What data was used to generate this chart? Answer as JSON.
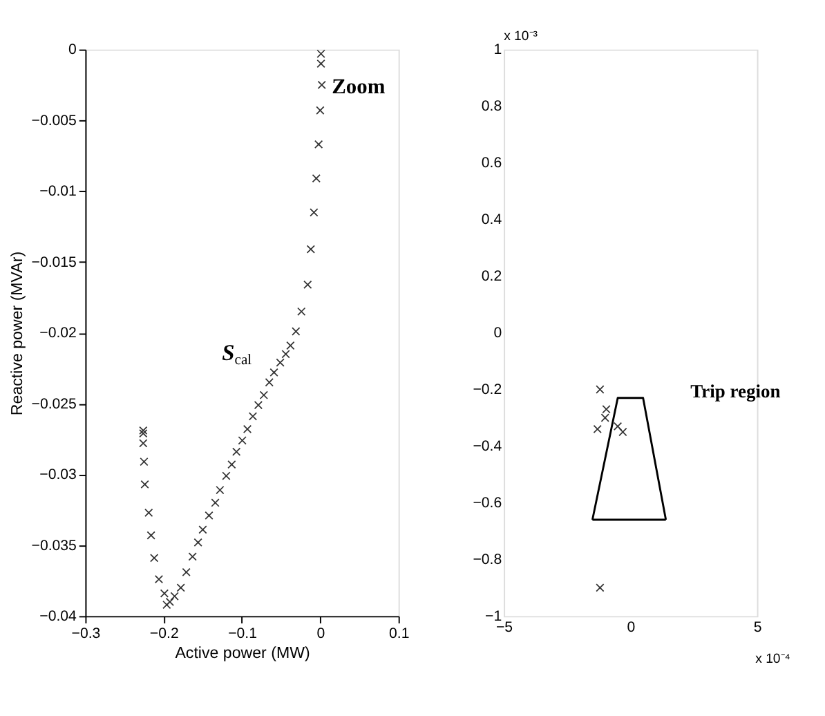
{
  "chart_data": [
    {
      "type": "scatter",
      "xlabel": "Active power (MW)",
      "ylabel": "Reactive power (MVAr)",
      "xlim": [
        -0.3,
        0.1
      ],
      "ylim": [
        -0.04,
        0
      ],
      "xticks": [
        -0.3,
        -0.2,
        -0.1,
        0,
        0.1
      ],
      "yticks": [
        -0.04,
        -0.035,
        -0.03,
        -0.025,
        -0.02,
        -0.015,
        -0.01,
        -0.005,
        0
      ],
      "grid": false,
      "marker": "cross",
      "series": [
        {
          "color": "#333333",
          "x": [
            0.001,
            0.001,
            0.002,
            0,
            -0.002,
            -0.005,
            -0.008,
            -0.012,
            -0.016,
            -0.024,
            -0.031,
            -0.038,
            -0.044,
            -0.051,
            -0.059,
            -0.065,
            -0.072,
            -0.079,
            -0.086,
            -0.093,
            -0.0995,
            -0.107,
            -0.113,
            -0.12,
            -0.128,
            -0.134,
            -0.142,
            -0.15,
            -0.156,
            -0.163,
            -0.171,
            -0.178,
            -0.186,
            -0.192,
            -0.196,
            -0.199,
            -0.206,
            -0.212,
            -0.216,
            -0.219,
            -0.224,
            -0.225,
            -0.226,
            -0.226,
            -0.226
          ],
          "values": [
            -0.0003,
            -0.001,
            -0.0025,
            -0.0043,
            -0.0067,
            -0.0091,
            -0.0115,
            -0.0141,
            -0.0166,
            -0.0185,
            -0.0199,
            -0.0209,
            -0.0215,
            -0.0221,
            -0.0228,
            -0.0235,
            -0.0244,
            -0.0251,
            -0.0259,
            -0.0268,
            -0.0276,
            -0.0284,
            -0.0293,
            -0.0301,
            -0.0311,
            -0.032,
            -0.0329,
            -0.0339,
            -0.0348,
            -0.0358,
            -0.0369,
            -0.038,
            -0.0386,
            -0.039,
            -0.0392,
            -0.0384,
            -0.0374,
            -0.0359,
            -0.0343,
            -0.0327,
            -0.0307,
            -0.0291,
            -0.0278,
            -0.0271,
            -0.0269
          ]
        }
      ],
      "annotations": [
        "Zoom",
        "S$_{cal}$"
      ]
    },
    {
      "type": "scatter",
      "xlim": [
        -5,
        5
      ],
      "ylim": [
        -1,
        1
      ],
      "xticks": [
        -5,
        0,
        5
      ],
      "yticks": [
        -1,
        -0.8,
        -0.6,
        -0.4,
        -0.2,
        0,
        0.2,
        0.4,
        0.6,
        0.8,
        1
      ],
      "grid": false,
      "marker": "cross",
      "series": [
        {
          "color": "#333333",
          "x": [
            -1.2,
            -0.95,
            -1.0,
            -1.3,
            -0.5,
            -0.3,
            -1.2
          ],
          "values": [
            -0.2,
            -0.27,
            -0.3,
            -0.34,
            -0.33,
            -0.35,
            -0.9
          ]
        },
        {
          "type": "line",
          "color": "#000000",
          "marker": "none",
          "line_style": "solid",
          "x": [
            -1.5,
            -0.5,
            0.5,
            1.4
          ],
          "values": [
            -0.66,
            -0.23,
            -0.23,
            -0.66
          ]
        },
        {
          "type": "line",
          "color": "#000000",
          "marker": "none",
          "line_style": "solid",
          "x": [
            -1.5,
            1.4
          ],
          "values": [
            -0.66,
            -0.66
          ]
        }
      ],
      "annotations": [
        "x 10⁻³",
        "x 10⁻⁴",
        "Trip region"
      ]
    }
  ]
}
